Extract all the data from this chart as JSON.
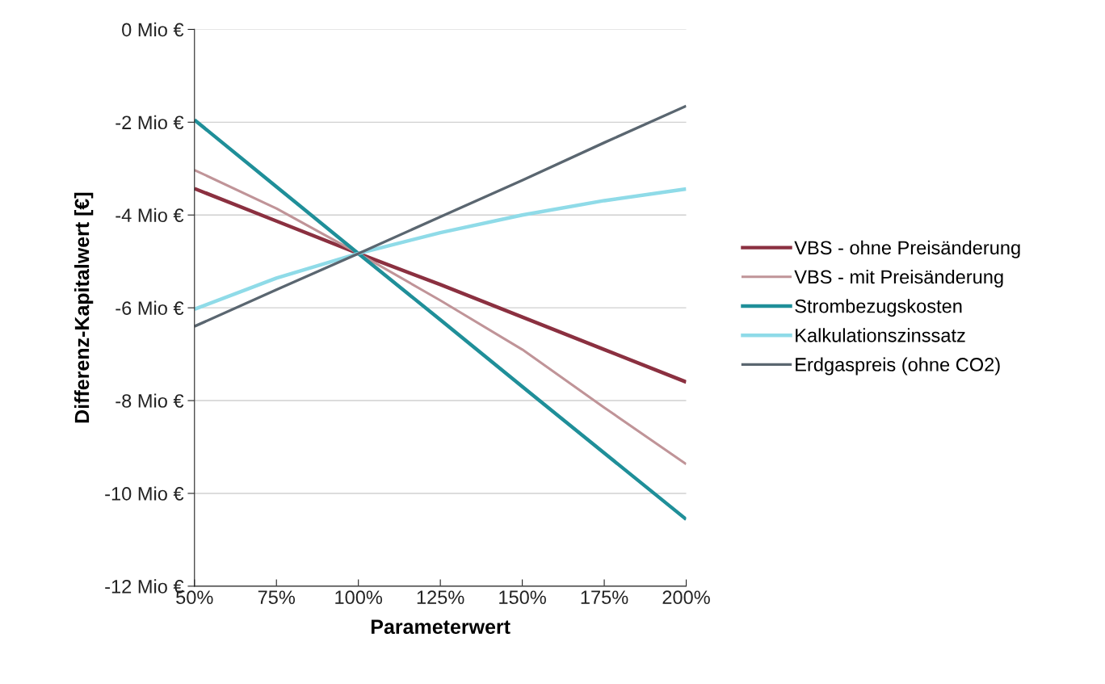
{
  "chart_data": {
    "type": "line",
    "xlabel": "Parameterwert",
    "ylabel": "Differenz-Kapitalwert [€]",
    "x": [
      50,
      75,
      100,
      125,
      150,
      175,
      200
    ],
    "xlim": [
      50,
      200
    ],
    "xticks": [
      {
        "value": 50,
        "label": "50%"
      },
      {
        "value": 75,
        "label": "75%"
      },
      {
        "value": 100,
        "label": "100%"
      },
      {
        "value": 125,
        "label": "125%"
      },
      {
        "value": 150,
        "label": "150%"
      },
      {
        "value": 175,
        "label": "175%"
      },
      {
        "value": 200,
        "label": "200%"
      }
    ],
    "ylim": [
      -12,
      0
    ],
    "yticks": [
      {
        "value": -12,
        "label": "-12 Mio €"
      },
      {
        "value": -10,
        "label": "-10 Mio €"
      },
      {
        "value": -8,
        "label": "-8 Mio €"
      },
      {
        "value": -6,
        "label": "-6 Mio €"
      },
      {
        "value": -4,
        "label": "-4 Mio €"
      },
      {
        "value": -2,
        "label": "-2 Mio €"
      },
      {
        "value": 0,
        "label": "0 Mio €"
      }
    ],
    "grid": "y",
    "legend": "right",
    "marker": "none",
    "line_style": "solid",
    "series": [
      {
        "name": "VBS - ohne Preisänderung",
        "color": "#8b3040",
        "values": [
          -3.43,
          -4.13,
          -4.83,
          -5.5,
          -6.2,
          -6.9,
          -7.6
        ]
      },
      {
        "name": "VBS - mit Preisänderung",
        "color": "#c09498",
        "values": [
          -3.03,
          -3.86,
          -4.83,
          -5.84,
          -6.9,
          -8.15,
          -9.37
        ]
      },
      {
        "name": "Strombezugskosten",
        "color": "#1f8f99",
        "values": [
          -1.95,
          -3.39,
          -4.83,
          -6.26,
          -7.7,
          -9.13,
          -10.56
        ]
      },
      {
        "name": "Kalkulationszinssatz",
        "color": "#8fdbe8",
        "values": [
          -6.03,
          -5.36,
          -4.83,
          -4.38,
          -4.0,
          -3.69,
          -3.44
        ]
      },
      {
        "name": "Erdgaspreis (ohne CO2)",
        "color": "#5a6670",
        "values": [
          -6.4,
          -5.61,
          -4.83,
          -4.04,
          -3.25,
          -2.44,
          -1.65
        ]
      }
    ]
  }
}
